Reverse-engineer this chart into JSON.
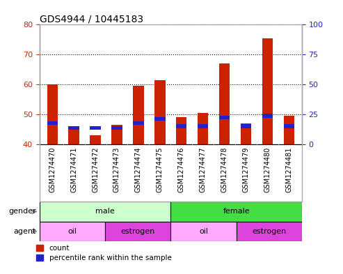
{
  "title": "GDS4944 / 10445183",
  "samples": [
    "GSM1274470",
    "GSM1274471",
    "GSM1274472",
    "GSM1274473",
    "GSM1274474",
    "GSM1274475",
    "GSM1274476",
    "GSM1274477",
    "GSM1274478",
    "GSM1274479",
    "GSM1274480",
    "GSM1274481"
  ],
  "count_values": [
    60,
    45.5,
    43,
    46.5,
    59.5,
    61.5,
    49,
    50.5,
    67,
    47,
    75.5,
    49.5
  ],
  "percentile_values": [
    47,
    45.5,
    45.5,
    45.5,
    47,
    48.5,
    46,
    46,
    49,
    46,
    49.5,
    46
  ],
  "ylim_left": [
    40,
    80
  ],
  "ylim_right": [
    0,
    100
  ],
  "yticks_left": [
    40,
    50,
    60,
    70,
    80
  ],
  "yticks_right": [
    0,
    25,
    50,
    75,
    100
  ],
  "bar_bottom": 40,
  "count_color": "#cc2200",
  "percentile_color": "#2222cc",
  "title_fontsize": 10,
  "gender_groups": [
    {
      "label": "male",
      "start": 0,
      "end": 6,
      "color": "#ccffcc"
    },
    {
      "label": "female",
      "start": 6,
      "end": 12,
      "color": "#44dd44"
    }
  ],
  "agent_groups": [
    {
      "label": "oil",
      "start": 0,
      "end": 3,
      "color": "#ffaaff"
    },
    {
      "label": "estrogen",
      "start": 3,
      "end": 6,
      "color": "#dd44dd"
    },
    {
      "label": "oil",
      "start": 6,
      "end": 9,
      "color": "#ffaaff"
    },
    {
      "label": "estrogen",
      "start": 9,
      "end": 12,
      "color": "#dd44dd"
    }
  ],
  "legend_count_label": "count",
  "legend_percentile_label": "percentile rank within the sample",
  "left_axis_color": "#cc2200",
  "right_axis_color": "#2222cc",
  "bar_width": 0.5,
  "xlabel_bg_color": "#cccccc",
  "fig_border_color": "#aaaaaa"
}
